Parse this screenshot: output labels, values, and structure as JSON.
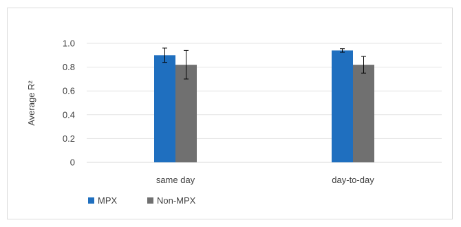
{
  "chart_data": {
    "type": "bar",
    "title": "",
    "xlabel": "",
    "ylabel": "Average R²",
    "ylim": [
      0,
      1.0
    ],
    "yticks": [
      "0",
      "0.2",
      "0.4",
      "0.6",
      "0.8",
      "1.0"
    ],
    "grid": true,
    "legend_position": "bottom-left",
    "categories": [
      "same day",
      "day-to-day"
    ],
    "series": [
      {
        "name": "MPX",
        "color": "#1f6fbf",
        "values": [
          0.9,
          0.94
        ],
        "error": [
          0.06,
          0.015
        ]
      },
      {
        "name": "Non-MPX",
        "color": "#707070",
        "values": [
          0.82,
          0.82
        ],
        "error": [
          0.12,
          0.07
        ]
      }
    ]
  }
}
